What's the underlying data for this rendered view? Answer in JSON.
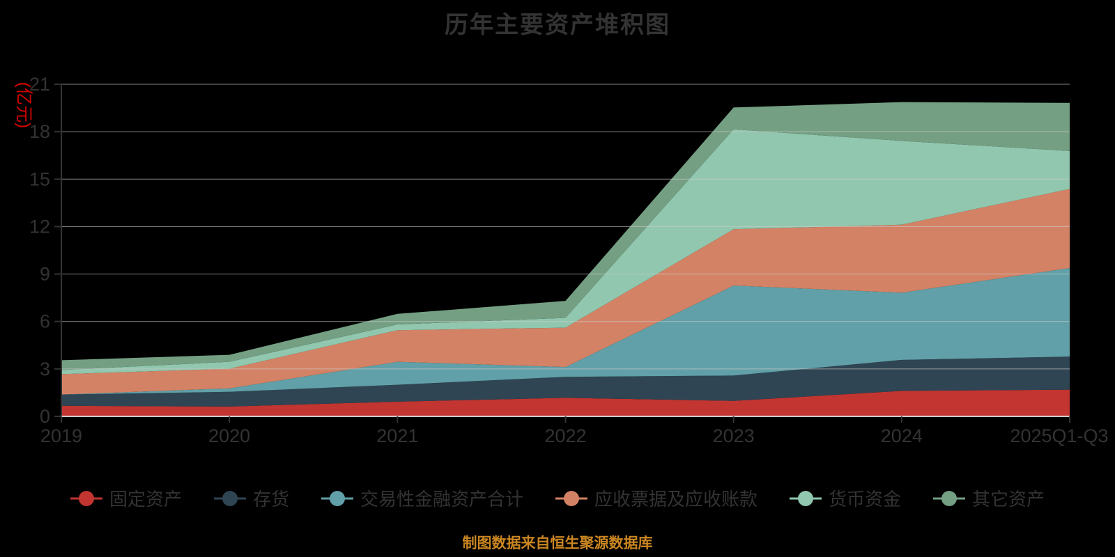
{
  "title": "历年主要资产堆积图",
  "y_axis_name": "(亿元)",
  "footer": "制图数据来自恒生聚源数据库",
  "colors": {
    "background": "#000000",
    "text": "#333333",
    "axis_name": "#d60000",
    "gridline": "#cccccc",
    "x_axis_line": "#cccccc",
    "y_axis_line": "#333333",
    "tick": "#333333",
    "footer": "#ca8622"
  },
  "chart_data": {
    "type": "area",
    "stacked": true,
    "title": "历年主要资产堆积图",
    "ylabel": "(亿元)",
    "ylim": [
      0,
      21
    ],
    "y_ticks": [
      0,
      3,
      6,
      9,
      12,
      15,
      18,
      21
    ],
    "grid": true,
    "legend_position": "bottom",
    "categories": [
      "2019",
      "2020",
      "2021",
      "2022",
      "2023",
      "2024",
      "2025Q1-Q3"
    ],
    "series": [
      {
        "name": "固定资产",
        "color": "#c23531",
        "values": [
          0.67,
          0.62,
          0.93,
          1.17,
          0.98,
          1.61,
          1.69
        ]
      },
      {
        "name": "存货",
        "color": "#2f4554",
        "values": [
          0.71,
          0.93,
          1.07,
          1.33,
          1.6,
          1.96,
          2.09
        ]
      },
      {
        "name": "交易性金融资产合计",
        "color": "#61a0a8",
        "values": [
          0.0,
          0.22,
          1.45,
          0.62,
          5.69,
          4.25,
          5.6
        ]
      },
      {
        "name": "应收票据及应收账款",
        "color": "#d48265",
        "values": [
          1.29,
          1.24,
          2.0,
          2.49,
          3.56,
          4.3,
          5.0
        ]
      },
      {
        "name": "货币资金",
        "color": "#91c7ae",
        "values": [
          0.26,
          0.44,
          0.36,
          0.62,
          6.32,
          5.3,
          2.4
        ]
      },
      {
        "name": "其它资产",
        "color": "#749f83",
        "values": [
          0.62,
          0.44,
          0.67,
          1.07,
          1.38,
          2.45,
          3.04
        ]
      }
    ]
  }
}
